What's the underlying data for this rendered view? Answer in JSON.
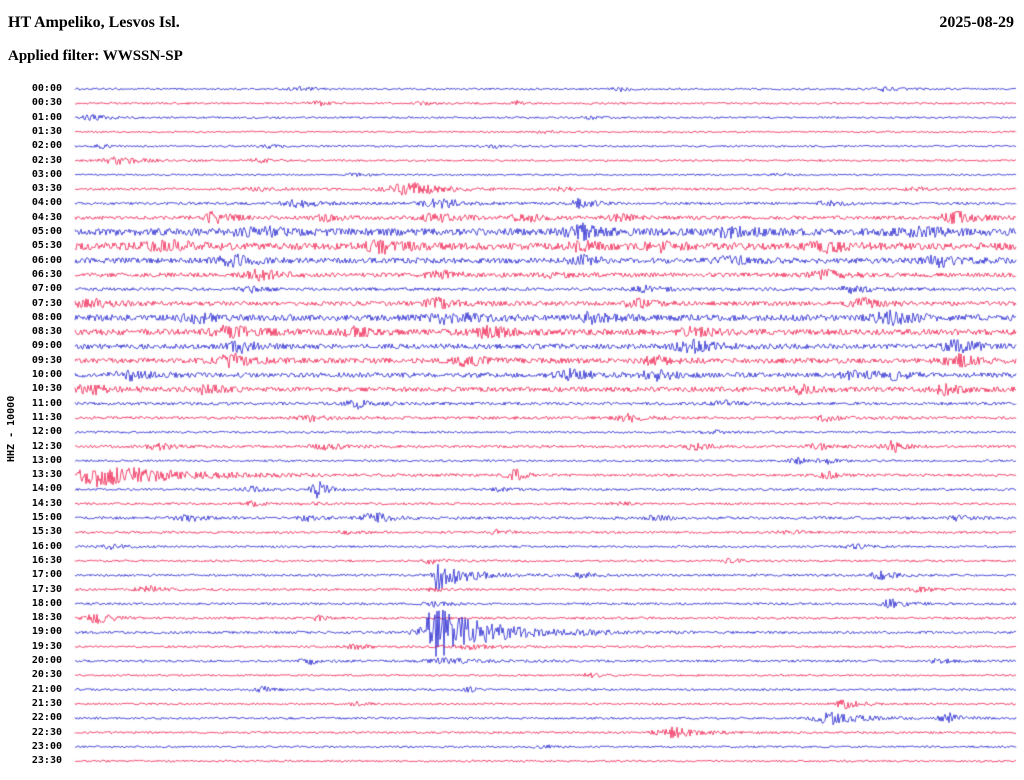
{
  "header": {
    "title": "HT Ampeliko, Lesvos Isl.",
    "date": "2025-08-29",
    "filter_label": "Applied filter: WWSSN-SP"
  },
  "axis": {
    "left_label": "HHZ - 10000"
  },
  "chart_data": {
    "type": "seismogram-helicorder",
    "row_interval_minutes": 30,
    "first_row_start": "00:00",
    "last_row_start": "23:30",
    "colors": {
      "even_rows": "#1616cc",
      "odd_rows": "#ee1144",
      "text": "#000000",
      "background": "#ffffff"
    },
    "rows": [
      {
        "label": "00:00",
        "noise": 1.0,
        "events": [
          {
            "x": 0.24,
            "a": 2,
            "w": 0.008
          },
          {
            "x": 0.58,
            "a": 2,
            "w": 0.006
          },
          {
            "x": 0.86,
            "a": 2,
            "w": 0.01
          }
        ]
      },
      {
        "label": "00:30",
        "noise": 1.0,
        "events": [
          {
            "x": 0.26,
            "a": 2.5,
            "w": 0.008
          },
          {
            "x": 0.37,
            "a": 2,
            "w": 0.006
          },
          {
            "x": 0.47,
            "a": 2,
            "w": 0.006
          }
        ]
      },
      {
        "label": "01:00",
        "noise": 1.0,
        "events": [
          {
            "x": 0.02,
            "a": 3,
            "w": 0.01
          },
          {
            "x": 0.55,
            "a": 1.5,
            "w": 0.008
          }
        ]
      },
      {
        "label": "01:30",
        "noise": 0.9,
        "events": [
          {
            "x": 0.5,
            "a": 1.5,
            "w": 0.006
          }
        ]
      },
      {
        "label": "02:00",
        "noise": 1.0,
        "events": [
          {
            "x": 0.03,
            "a": 2,
            "w": 0.006
          },
          {
            "x": 0.21,
            "a": 2,
            "w": 0.008
          },
          {
            "x": 0.45,
            "a": 1.5,
            "w": 0.01
          }
        ]
      },
      {
        "label": "02:30",
        "noise": 1.0,
        "events": [
          {
            "x": 0.05,
            "a": 3.5,
            "w": 0.015
          },
          {
            "x": 0.2,
            "a": 2,
            "w": 0.01
          }
        ]
      },
      {
        "label": "03:00",
        "noise": 0.9,
        "events": [
          {
            "x": 0.3,
            "a": 1.5,
            "w": 0.008
          },
          {
            "x": 0.75,
            "a": 1.5,
            "w": 0.006
          }
        ]
      },
      {
        "label": "03:30",
        "noise": 1.3,
        "events": [
          {
            "x": 0.2,
            "a": 2,
            "w": 0.01
          },
          {
            "x": 0.36,
            "a": 6,
            "w": 0.02
          },
          {
            "x": 0.52,
            "a": 2,
            "w": 0.008
          },
          {
            "x": 0.9,
            "a": 2,
            "w": 0.01
          }
        ]
      },
      {
        "label": "04:00",
        "noise": 1.4,
        "events": [
          {
            "x": 0.24,
            "a": 4,
            "w": 0.012
          },
          {
            "x": 0.39,
            "a": 4.5,
            "w": 0.015
          },
          {
            "x": 0.54,
            "a": 5,
            "w": 0.008
          },
          {
            "x": 0.8,
            "a": 2.5,
            "w": 0.01
          }
        ]
      },
      {
        "label": "04:30",
        "noise": 1.8,
        "events": [
          {
            "x": 0.15,
            "a": 5,
            "w": 0.012
          },
          {
            "x": 0.27,
            "a": 3,
            "w": 0.01
          },
          {
            "x": 0.39,
            "a": 4,
            "w": 0.015
          },
          {
            "x": 0.48,
            "a": 3.5,
            "w": 0.012
          },
          {
            "x": 0.58,
            "a": 3,
            "w": 0.01
          },
          {
            "x": 0.94,
            "a": 5,
            "w": 0.015
          }
        ]
      },
      {
        "label": "05:00",
        "noise": 3.5,
        "events": [
          {
            "x": 0.2,
            "a": 4,
            "w": 0.02
          },
          {
            "x": 0.54,
            "a": 6,
            "w": 0.012
          },
          {
            "x": 0.7,
            "a": 4,
            "w": 0.015
          },
          {
            "x": 0.9,
            "a": 3,
            "w": 0.02
          }
        ]
      },
      {
        "label": "05:30",
        "noise": 3.5,
        "events": [
          {
            "x": 0.1,
            "a": 4,
            "w": 0.02
          },
          {
            "x": 0.33,
            "a": 5,
            "w": 0.015
          },
          {
            "x": 0.54,
            "a": 4,
            "w": 0.01
          },
          {
            "x": 0.62,
            "a": 4,
            "w": 0.012
          },
          {
            "x": 0.8,
            "a": 4,
            "w": 0.015
          }
        ]
      },
      {
        "label": "06:00",
        "noise": 2.8,
        "events": [
          {
            "x": 0.17,
            "a": 5,
            "w": 0.012
          },
          {
            "x": 0.54,
            "a": 4,
            "w": 0.01
          },
          {
            "x": 0.7,
            "a": 4,
            "w": 0.012
          },
          {
            "x": 0.92,
            "a": 5,
            "w": 0.012
          }
        ]
      },
      {
        "label": "06:30",
        "noise": 2.2,
        "events": [
          {
            "x": 0.2,
            "a": 5,
            "w": 0.012
          },
          {
            "x": 0.39,
            "a": 3.5,
            "w": 0.012
          },
          {
            "x": 0.51,
            "a": 3,
            "w": 0.01
          },
          {
            "x": 0.8,
            "a": 4,
            "w": 0.012
          }
        ]
      },
      {
        "label": "07:00",
        "noise": 1.6,
        "events": [
          {
            "x": 0.19,
            "a": 3,
            "w": 0.01
          },
          {
            "x": 0.61,
            "a": 3,
            "w": 0.012
          },
          {
            "x": 0.83,
            "a": 3.5,
            "w": 0.012
          }
        ]
      },
      {
        "label": "07:30",
        "noise": 2.2,
        "events": [
          {
            "x": 0.02,
            "a": 4,
            "w": 0.015
          },
          {
            "x": 0.39,
            "a": 4.5,
            "w": 0.015
          },
          {
            "x": 0.6,
            "a": 3.5,
            "w": 0.012
          },
          {
            "x": 0.84,
            "a": 4,
            "w": 0.012
          }
        ]
      },
      {
        "label": "08:00",
        "noise": 3.2,
        "events": [
          {
            "x": 0.13,
            "a": 4,
            "w": 0.012
          },
          {
            "x": 0.4,
            "a": 5,
            "w": 0.015
          },
          {
            "x": 0.55,
            "a": 4,
            "w": 0.012
          },
          {
            "x": 0.87,
            "a": 5,
            "w": 0.015
          }
        ]
      },
      {
        "label": "08:30",
        "noise": 3.0,
        "events": [
          {
            "x": 0.17,
            "a": 6,
            "w": 0.015
          },
          {
            "x": 0.3,
            "a": 4,
            "w": 0.012
          },
          {
            "x": 0.44,
            "a": 5,
            "w": 0.015
          },
          {
            "x": 0.66,
            "a": 4,
            "w": 0.012
          }
        ]
      },
      {
        "label": "09:00",
        "noise": 2.6,
        "events": [
          {
            "x": 0.18,
            "a": 5,
            "w": 0.012
          },
          {
            "x": 0.66,
            "a": 5,
            "w": 0.015
          },
          {
            "x": 0.94,
            "a": 6,
            "w": 0.012
          }
        ]
      },
      {
        "label": "09:30",
        "noise": 2.6,
        "events": [
          {
            "x": 0.17,
            "a": 5,
            "w": 0.015
          },
          {
            "x": 0.42,
            "a": 4.5,
            "w": 0.012
          },
          {
            "x": 0.62,
            "a": 4,
            "w": 0.012
          },
          {
            "x": 0.94,
            "a": 5,
            "w": 0.012
          }
        ]
      },
      {
        "label": "10:00",
        "noise": 2.4,
        "events": [
          {
            "x": 0.06,
            "a": 4,
            "w": 0.012
          },
          {
            "x": 0.53,
            "a": 5,
            "w": 0.012
          },
          {
            "x": 0.62,
            "a": 5,
            "w": 0.012
          },
          {
            "x": 0.83,
            "a": 4,
            "w": 0.012
          },
          {
            "x": 0.87,
            "a": 4,
            "w": 0.01
          }
        ]
      },
      {
        "label": "10:30",
        "noise": 2.4,
        "events": [
          {
            "x": 0.02,
            "a": 4,
            "w": 0.015
          },
          {
            "x": 0.14,
            "a": 4,
            "w": 0.012
          },
          {
            "x": 0.77,
            "a": 4,
            "w": 0.012
          },
          {
            "x": 0.93,
            "a": 5,
            "w": 0.012
          }
        ]
      },
      {
        "label": "11:00",
        "noise": 1.5,
        "events": [
          {
            "x": 0.3,
            "a": 4.5,
            "w": 0.008
          },
          {
            "x": 0.69,
            "a": 3,
            "w": 0.01
          }
        ]
      },
      {
        "label": "11:30",
        "noise": 1.5,
        "events": [
          {
            "x": 0.25,
            "a": 3,
            "w": 0.01
          },
          {
            "x": 0.59,
            "a": 3.5,
            "w": 0.01
          },
          {
            "x": 0.8,
            "a": 2.5,
            "w": 0.01
          }
        ]
      },
      {
        "label": "12:00",
        "noise": 1.1,
        "events": [
          {
            "x": 0.68,
            "a": 2,
            "w": 0.008
          }
        ]
      },
      {
        "label": "12:30",
        "noise": 1.4,
        "events": [
          {
            "x": 0.09,
            "a": 3.5,
            "w": 0.01
          },
          {
            "x": 0.27,
            "a": 3,
            "w": 0.012
          },
          {
            "x": 0.66,
            "a": 3,
            "w": 0.01
          },
          {
            "x": 0.79,
            "a": 3.5,
            "w": 0.008
          },
          {
            "x": 0.87,
            "a": 5.5,
            "w": 0.008
          }
        ]
      },
      {
        "label": "13:00",
        "noise": 1.1,
        "events": [
          {
            "x": 0.77,
            "a": 3,
            "w": 0.008
          },
          {
            "x": 0.8,
            "a": 2.5,
            "w": 0.006
          }
        ]
      },
      {
        "label": "13:30",
        "noise": 1.3,
        "events": [
          {
            "x": 0.022,
            "a": 11,
            "w": 0.012,
            "tail": 0.08
          },
          {
            "x": 0.47,
            "a": 5,
            "w": 0.008
          },
          {
            "x": 0.8,
            "a": 3,
            "w": 0.01
          }
        ]
      },
      {
        "label": "14:00",
        "noise": 1.2,
        "events": [
          {
            "x": 0.19,
            "a": 2.5,
            "w": 0.008
          },
          {
            "x": 0.26,
            "a": 9,
            "w": 0.006
          },
          {
            "x": 0.45,
            "a": 2,
            "w": 0.008
          }
        ]
      },
      {
        "label": "14:30",
        "noise": 1.1,
        "events": [
          {
            "x": 0.19,
            "a": 2.5,
            "w": 0.008
          },
          {
            "x": 0.25,
            "a": 2,
            "w": 0.006
          },
          {
            "x": 0.58,
            "a": 2,
            "w": 0.008
          }
        ]
      },
      {
        "label": "15:00",
        "noise": 1.4,
        "events": [
          {
            "x": 0.12,
            "a": 3.5,
            "w": 0.01
          },
          {
            "x": 0.25,
            "a": 3,
            "w": 0.008
          },
          {
            "x": 0.32,
            "a": 5,
            "w": 0.01
          },
          {
            "x": 0.62,
            "a": 3,
            "w": 0.008
          },
          {
            "x": 0.94,
            "a": 3,
            "w": 0.008
          }
        ]
      },
      {
        "label": "15:30",
        "noise": 1.2,
        "events": [
          {
            "x": 0.29,
            "a": 2.5,
            "w": 0.008
          },
          {
            "x": 0.45,
            "a": 2,
            "w": 0.008
          },
          {
            "x": 0.76,
            "a": 2,
            "w": 0.008
          }
        ]
      },
      {
        "label": "16:00",
        "noise": 1.1,
        "events": [
          {
            "x": 0.04,
            "a": 2.5,
            "w": 0.008
          },
          {
            "x": 0.83,
            "a": 2.5,
            "w": 0.008
          }
        ]
      },
      {
        "label": "16:30",
        "noise": 1.1,
        "events": [
          {
            "x": 0.38,
            "a": 3,
            "w": 0.006
          },
          {
            "x": 0.7,
            "a": 2,
            "w": 0.008
          }
        ]
      },
      {
        "label": "17:00",
        "noise": 1.2,
        "events": [
          {
            "x": 0.385,
            "a": 14,
            "w": 0.004,
            "tail": 0.03
          },
          {
            "x": 0.54,
            "a": 3,
            "w": 0.008
          },
          {
            "x": 0.86,
            "a": 4,
            "w": 0.01
          }
        ]
      },
      {
        "label": "17:30",
        "noise": 1.2,
        "events": [
          {
            "x": 0.08,
            "a": 3,
            "w": 0.01
          },
          {
            "x": 0.38,
            "a": 2,
            "w": 0.006
          },
          {
            "x": 0.9,
            "a": 2.5,
            "w": 0.008
          }
        ]
      },
      {
        "label": "18:00",
        "noise": 1.2,
        "events": [
          {
            "x": 0.385,
            "a": 3,
            "w": 0.008
          },
          {
            "x": 0.87,
            "a": 4,
            "w": 0.01
          }
        ]
      },
      {
        "label": "18:30",
        "noise": 1.2,
        "events": [
          {
            "x": 0.025,
            "a": 4.5,
            "w": 0.01
          },
          {
            "x": 0.26,
            "a": 2,
            "w": 0.008
          }
        ]
      },
      {
        "label": "19:00",
        "noise": 1.3,
        "events": [
          {
            "x": 0.385,
            "a": 26,
            "w": 0.012,
            "tail": 0.05
          },
          {
            "x": 0.55,
            "a": 2,
            "w": 0.01
          }
        ]
      },
      {
        "label": "19:30",
        "noise": 1.1,
        "events": [
          {
            "x": 0.3,
            "a": 2,
            "w": 0.01
          },
          {
            "x": 0.42,
            "a": 2.5,
            "w": 0.015
          }
        ]
      },
      {
        "label": "20:00",
        "noise": 1.2,
        "events": [
          {
            "x": 0.25,
            "a": 3,
            "w": 0.008
          },
          {
            "x": 0.4,
            "a": 2.5,
            "w": 0.02
          },
          {
            "x": 0.92,
            "a": 2.5,
            "w": 0.008
          }
        ]
      },
      {
        "label": "20:30",
        "noise": 1.0,
        "events": [
          {
            "x": 0.55,
            "a": 2,
            "w": 0.008
          }
        ]
      },
      {
        "label": "21:00",
        "noise": 1.1,
        "events": [
          {
            "x": 0.2,
            "a": 3,
            "w": 0.006
          },
          {
            "x": 0.42,
            "a": 2.5,
            "w": 0.006
          }
        ]
      },
      {
        "label": "21:30",
        "noise": 1.0,
        "events": [
          {
            "x": 0.3,
            "a": 2,
            "w": 0.006
          },
          {
            "x": 0.82,
            "a": 4,
            "w": 0.01
          }
        ]
      },
      {
        "label": "22:00",
        "noise": 1.1,
        "events": [
          {
            "x": 0.8,
            "a": 7,
            "w": 0.01,
            "tail": 0.03
          },
          {
            "x": 0.93,
            "a": 4.5,
            "w": 0.008
          }
        ]
      },
      {
        "label": "22:30",
        "noise": 1.1,
        "events": [
          {
            "x": 0.63,
            "a": 6,
            "w": 0.01,
            "tail": 0.03
          }
        ]
      },
      {
        "label": "23:00",
        "noise": 1.0,
        "events": [
          {
            "x": 0.5,
            "a": 1.5,
            "w": 0.008
          }
        ]
      },
      {
        "label": "23:30",
        "noise": 1.0,
        "events": []
      }
    ]
  }
}
